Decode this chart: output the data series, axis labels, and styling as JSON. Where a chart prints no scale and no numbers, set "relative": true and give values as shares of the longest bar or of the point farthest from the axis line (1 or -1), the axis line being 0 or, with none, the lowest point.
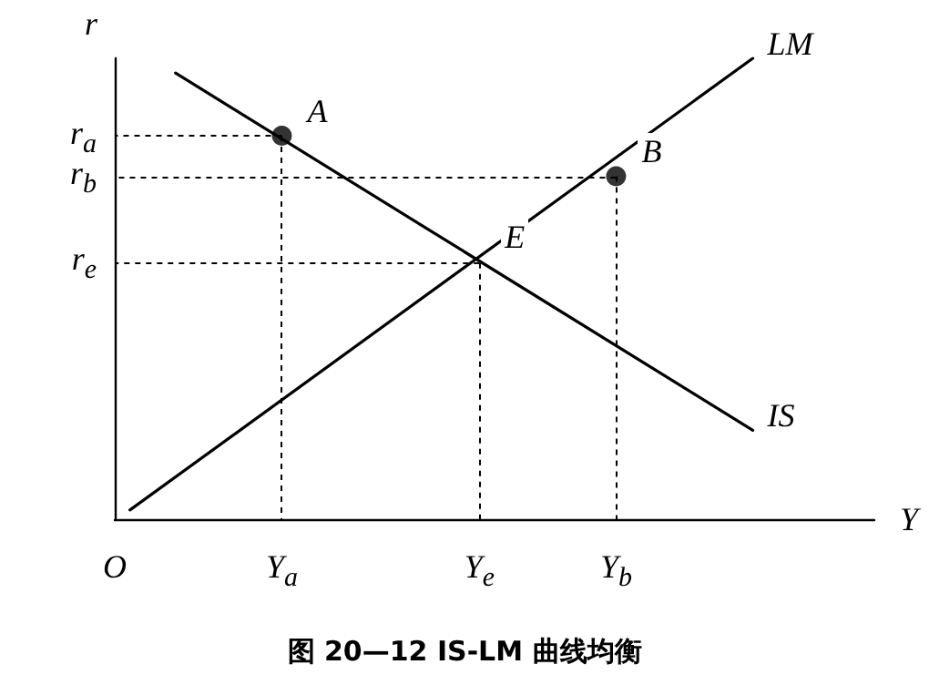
{
  "chart_data": {
    "type": "line",
    "title": "图 20—12 IS-LM 曲线均衡",
    "xlabel": "Y",
    "ylabel": "r",
    "relative": true,
    "categories": [
      "O",
      null,
      null,
      null,
      null,
      null,
      null,
      null,
      null,
      null,
      null,
      "Y$_{a}$",
      null,
      null,
      null,
      null,
      null,
      null,
      null,
      null,
      null,
      null,
      null,
      null,
      "Y$_{e}$",
      null,
      null,
      null,
      null,
      null,
      null,
      null,
      null,
      "Y$_{b}$",
      null,
      null,
      null,
      null,
      null,
      null,
      null,
      null,
      null,
      null,
      null,
      null,
      null,
      null,
      null,
      null,
      null
    ],
    "series": [
      {
        "name": "IS",
        "color": "#000000",
        "values": [
          null,
          null,
          null,
          null,
          0.968,
          null,
          null,
          null,
          null,
          null,
          null,
          null,
          null,
          null,
          null,
          null,
          null,
          null,
          null,
          null,
          null,
          null,
          null,
          null,
          null,
          null,
          null,
          null,
          null,
          null,
          null,
          null,
          null,
          null,
          null,
          null,
          null,
          null,
          null,
          null,
          null,
          null,
          0.193,
          null,
          null,
          null,
          null,
          null,
          null,
          null,
          null
        ]
      },
      {
        "name": "LM",
        "color": "#000000",
        "values": [
          null,
          0.02,
          null,
          null,
          null,
          null,
          null,
          null,
          null,
          null,
          null,
          null,
          null,
          null,
          null,
          null,
          null,
          null,
          null,
          null,
          null,
          null,
          null,
          null,
          null,
          null,
          null,
          null,
          null,
          null,
          null,
          null,
          null,
          null,
          null,
          null,
          null,
          null,
          null,
          null,
          null,
          null,
          1,
          null,
          null,
          null,
          null,
          null,
          null,
          null,
          null
        ]
      },
      {
        "type": "scatter",
        "color": "#000000",
        "marker": "circle",
        "values": [
          null,
          null,
          null,
          null,
          null,
          null,
          null,
          null,
          null,
          null,
          null,
          0.832,
          null,
          null,
          null,
          null,
          null,
          null,
          null,
          null,
          null,
          null,
          null,
          null,
          null,
          null,
          null,
          null,
          null,
          null,
          null,
          null,
          null,
          0.744,
          null,
          null,
          null,
          null,
          null,
          null,
          null,
          null,
          null,
          null,
          null,
          null,
          null,
          null,
          null,
          null,
          null
        ]
      }
    ],
    "annotations": [
      {
        "text": "A",
        "x": "Y$_{a}$",
        "y": 0.832
      },
      {
        "text": "B",
        "x": "Y$_{b}$",
        "y": 0.744
      },
      {
        "text": "E",
        "x": "Y$_{e}$",
        "y": 0.556
      },
      "r$_{a}$",
      "r$_{b}$",
      "r$_{e}$"
    ]
  }
}
